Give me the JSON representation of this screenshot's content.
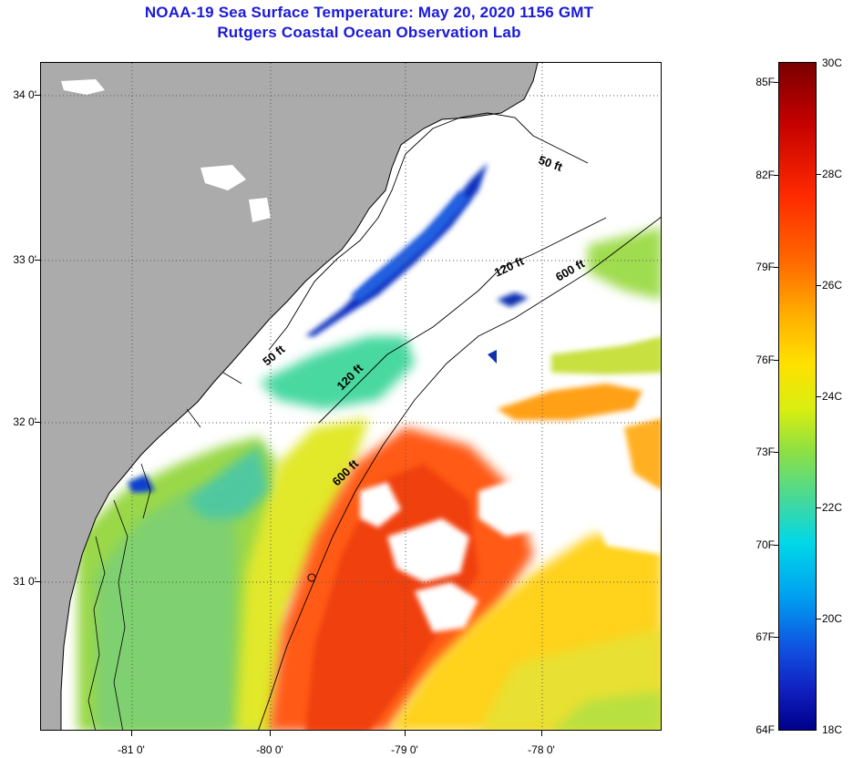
{
  "title": {
    "line1": "NOAA-19 Sea Surface Temperature:  May 20, 2020 1156 GMT",
    "line2": "Rutgers Coastal Ocean Observation Lab"
  },
  "map": {
    "lat_labels": [
      "34 0'",
      "33 0'",
      "32 0'",
      "31 0'"
    ],
    "lon_labels": [
      "-81 0'",
      "-80 0'",
      "-79 0'",
      "-78 0'"
    ],
    "contours": [
      "50 ft",
      "120 ft",
      "600 ft",
      "50 ft",
      "120 ft",
      "600 ft"
    ],
    "colors": {
      "land": "#ababab",
      "cloud": "#ffffff",
      "coast": "#000000",
      "grid": "#555555"
    }
  },
  "colorbar": {
    "fahrenheit": [
      "85F",
      "82F",
      "79F",
      "76F",
      "73F",
      "70F",
      "67F",
      "64F"
    ],
    "celsius": [
      "30C",
      "28C",
      "26C",
      "24C",
      "22C",
      "20C",
      "18C"
    ]
  }
}
